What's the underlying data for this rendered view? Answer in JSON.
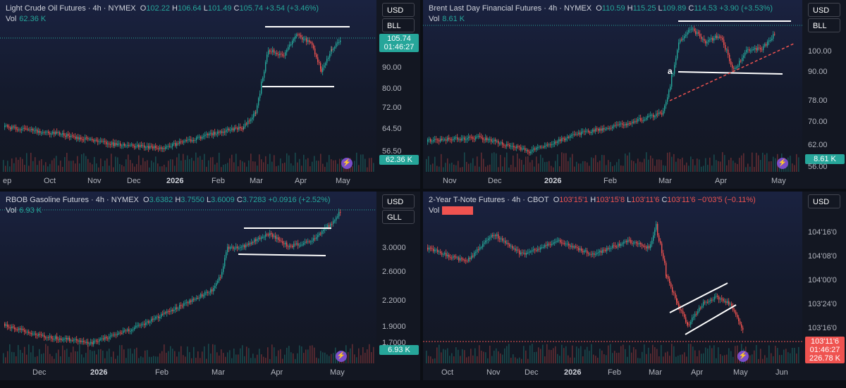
{
  "panels": [
    {
      "title": "Light Crude Oil Futures · 4h · NYMEX",
      "o_label": "O",
      "o": "102.22",
      "h_label": "H",
      "h": "106.64",
      "l_label": "L",
      "l": "101.49",
      "c_label": "C",
      "c": "105.74",
      "chg": "+3.54 (+3.46%)",
      "vol_label": "Vol",
      "vol": "62.36 K",
      "currency": "USD",
      "unit": "BLL",
      "price_ticks": [
        "90.00",
        "80.00",
        "72.00",
        "64.50",
        "56.50"
      ],
      "last_price": "105.74",
      "countdown": "01:46:27",
      "vol_box": "62.36 K",
      "x_ticks": [
        "ep",
        "Oct",
        "Nov",
        "Dec",
        "2026",
        "Feb",
        "Mar",
        "Apr",
        "May"
      ]
    },
    {
      "title": "Brent Last Day Financial Futures · 4h · NYMEX",
      "o_label": "O",
      "o": "110.59",
      "h_label": "H",
      "h": "115.25",
      "l_label": "L",
      "l": "109.89",
      "c_label": "C",
      "c": "114.53",
      "chg": "+3.90 (+3.53%)",
      "vol_label": "Vol",
      "vol": "8.61 K",
      "currency": "USD",
      "unit": "BLL",
      "price_ticks": [
        "100.00",
        "90.00",
        "78.00",
        "70.00",
        "62.00",
        "56.00"
      ],
      "vol_box": "8.61 K",
      "annotation": "a",
      "x_ticks": [
        "Nov",
        "Dec",
        "2026",
        "Feb",
        "Mar",
        "Apr",
        "May"
      ]
    },
    {
      "title": "RBOB Gasoline Futures · 4h · NYMEX",
      "o_label": "O",
      "o": "3.6382",
      "h_label": "H",
      "h": "3.7550",
      "l_label": "L",
      "l": "3.6009",
      "c_label": "C",
      "c": "3.7283",
      "chg": "+0.0916 (+2.52%)",
      "vol_label": "Vol",
      "vol": "6.93 K",
      "currency": "USD",
      "unit": "GLL",
      "price_ticks": [
        "3.0000",
        "2.6000",
        "2.2000",
        "1.9000",
        "1.7000"
      ],
      "vol_box": "6.93 K",
      "x_ticks": [
        "Dec",
        "2026",
        "Feb",
        "Mar",
        "Apr",
        "May"
      ]
    },
    {
      "title": "2-Year T-Note Futures · 4h · CBOT",
      "o_label": "O",
      "o": "103'15'1",
      "h_label": "H",
      "h": "103'15'8",
      "l_label": "L",
      "l": "103'11'6",
      "c_label": "C",
      "c": "103'11'6",
      "chg": "−0'03'5 (−0.11%)",
      "vol_label": "Vol",
      "vol": "226.78 K",
      "currency": "USD",
      "price_ticks": [
        "104'16'0",
        "104'08'0",
        "104'00'0",
        "103'24'0",
        "103'16'0"
      ],
      "last_price": "103'11'6",
      "countdown": "01:46:27",
      "vol_box": "226.78 K",
      "x_ticks": [
        "Oct",
        "Nov",
        "Dec",
        "2026",
        "Feb",
        "Mar",
        "Apr",
        "May",
        "Jun"
      ]
    }
  ],
  "colors": {
    "up": "#26a69a",
    "down": "#ef5350",
    "bg": "#131722",
    "bolt": "#7b4dc9"
  },
  "icons": {
    "alert": "lightning-bolt-icon"
  }
}
